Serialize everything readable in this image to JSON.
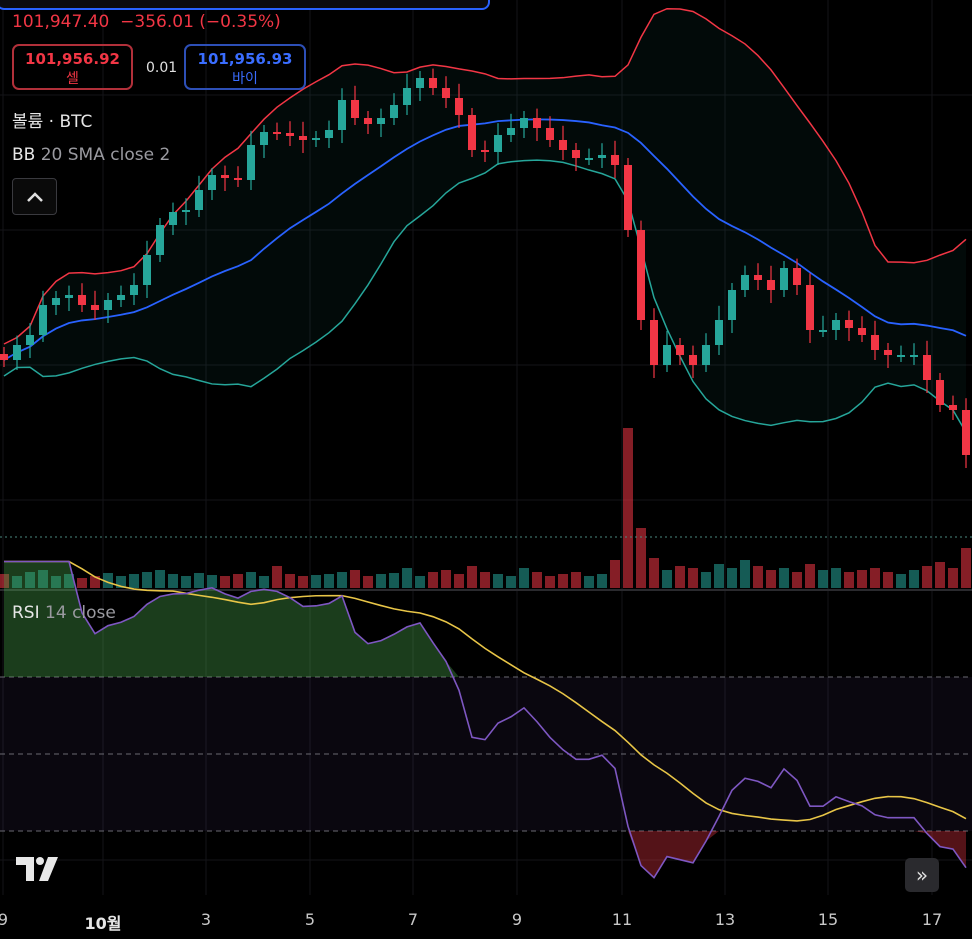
{
  "header": {
    "last_price": "101,947.40",
    "change": "−356.01",
    "change_pct": "(−0.35%)",
    "sell_price": "101,956.92",
    "sell_label": "셀",
    "spread": "0.01",
    "buy_price": "101,956.93",
    "buy_label": "바이"
  },
  "legends": {
    "volume": "볼륨 · BTC",
    "bb_name": "BB",
    "bb_params": "20 SMA close 2",
    "rsi_name": "RSI",
    "rsi_params": "14 close"
  },
  "xaxis": {
    "labels": [
      "9",
      "10월",
      "3",
      "5",
      "7",
      "9",
      "11",
      "13",
      "15",
      "17"
    ]
  },
  "colors": {
    "up": "#26a69a",
    "down": "#f23645",
    "bb_basis": "#2962ff",
    "bb_upper": "#f23645",
    "bb_lower": "#26a69a",
    "rsi": "#7e57c2",
    "rsi_ma": "#e8c547"
  },
  "chart_data": {
    "type": "candlestick",
    "closes": [
      106700,
      107450,
      107950,
      109450,
      109800,
      109950,
      109450,
      109200,
      109700,
      109950,
      110450,
      111950,
      113450,
      114100,
      114200,
      115200,
      115950,
      115800,
      115700,
      117450,
      118100,
      118050,
      117900,
      117700,
      117800,
      118200,
      119700,
      118800,
      118500,
      118800,
      119450,
      120300,
      120800,
      120300,
      119800,
      118950,
      117200,
      117100,
      117950,
      118300,
      118800,
      118300,
      117700,
      117200,
      116800,
      116800,
      116950,
      116450,
      113200,
      108700,
      106450,
      107450,
      106950,
      106450,
      107450,
      108700,
      110200,
      110950,
      110700,
      110200,
      111300,
      110450,
      108200,
      108200,
      108700,
      108300,
      107950,
      107200,
      106950,
      106950,
      106950,
      105700,
      104450,
      104200,
      101950
    ],
    "volumes": [
      14,
      12,
      16,
      18,
      12,
      14,
      10,
      12,
      15,
      12,
      14,
      16,
      18,
      14,
      12,
      15,
      13,
      12,
      14,
      16,
      12,
      22,
      14,
      12,
      13,
      14,
      16,
      18,
      12,
      14,
      15,
      20,
      12,
      16,
      18,
      14,
      22,
      16,
      14,
      12,
      20,
      16,
      12,
      14,
      16,
      12,
      14,
      28,
      160,
      60,
      30,
      18,
      22,
      20,
      16,
      24,
      20,
      28,
      22,
      18,
      20,
      16,
      24,
      18,
      20,
      16,
      18,
      20,
      16,
      14,
      18,
      22,
      26,
      20,
      40
    ],
    "bb": {
      "length": 20,
      "mult": 2
    },
    "rsi": {
      "length": 14,
      "levels": [
        70,
        50,
        30
      ]
    }
  }
}
